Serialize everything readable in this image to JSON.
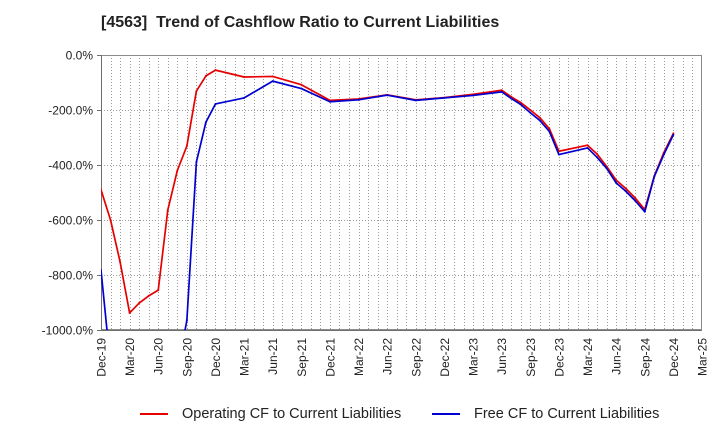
{
  "chart_data": {
    "type": "line",
    "title": "[4563]  Trend of Cashflow Ratio to Current Liabilities",
    "xlim": [
      "Dec-19",
      "Mar-25"
    ],
    "ylim": [
      -1000,
      0
    ],
    "x_tick_labels": [
      "Dec-19",
      "Mar-20",
      "Jun-20",
      "Sep-20",
      "Dec-20",
      "Mar-21",
      "Jun-21",
      "Sep-21",
      "Dec-21",
      "Mar-22",
      "Jun-22",
      "Sep-22",
      "Dec-22",
      "Mar-23",
      "Jun-23",
      "Sep-23",
      "Dec-23",
      "Mar-24",
      "Jun-24",
      "Sep-24",
      "Dec-24",
      "Mar-25"
    ],
    "y_tick_values": [
      0,
      -200,
      -400,
      -600,
      -800,
      -1000
    ],
    "y_tick_labels": [
      "0.0%",
      "-200.0%",
      "-400.0%",
      "-600.0%",
      "-800.0%",
      "-1000.0%"
    ],
    "grid": true,
    "legend": "bottom",
    "series": [
      {
        "name": "Operating CF to Current Liabilities",
        "color": "#e60000",
        "points": [
          {
            "x": "Dec-19",
            "y": -490
          },
          {
            "x": "Jan-20",
            "y": -600
          },
          {
            "x": "Feb-20",
            "y": -752
          },
          {
            "x": "Mar-20",
            "y": -938
          },
          {
            "x": "Apr-20",
            "y": -902
          },
          {
            "x": "May-20",
            "y": -876
          },
          {
            "x": "Jun-20",
            "y": -855
          },
          {
            "x": "Jul-20",
            "y": -564
          },
          {
            "x": "Aug-20",
            "y": -420
          },
          {
            "x": "Sep-20",
            "y": -331
          },
          {
            "x": "Oct-20",
            "y": -131
          },
          {
            "x": "Nov-20",
            "y": -76
          },
          {
            "x": "Dec-20",
            "y": -55
          },
          {
            "x": "Mar-21",
            "y": -80
          },
          {
            "x": "Jun-21",
            "y": -78
          },
          {
            "x": "Sep-21",
            "y": -108
          },
          {
            "x": "Dec-21",
            "y": -165
          },
          {
            "x": "Mar-22",
            "y": -160
          },
          {
            "x": "Jun-22",
            "y": -145
          },
          {
            "x": "Sep-22",
            "y": -163
          },
          {
            "x": "Dec-22",
            "y": -155
          },
          {
            "x": "Mar-23",
            "y": -143
          },
          {
            "x": "Jun-23",
            "y": -128
          },
          {
            "x": "Jul-23",
            "y": -152
          },
          {
            "x": "Aug-23",
            "y": -173
          },
          {
            "x": "Sep-23",
            "y": -200
          },
          {
            "x": "Oct-23",
            "y": -228
          },
          {
            "x": "Nov-23",
            "y": -268
          },
          {
            "x": "Dec-23",
            "y": -350
          },
          {
            "x": "Mar-24",
            "y": -328
          },
          {
            "x": "Apr-24",
            "y": -360
          },
          {
            "x": "May-24",
            "y": -405
          },
          {
            "x": "Jun-24",
            "y": -455
          },
          {
            "x": "Jul-24",
            "y": -485
          },
          {
            "x": "Aug-24",
            "y": -520
          },
          {
            "x": "Sep-24",
            "y": -562
          },
          {
            "x": "Oct-24",
            "y": -440
          },
          {
            "x": "Nov-24",
            "y": -355
          },
          {
            "x": "Dec-24",
            "y": -285
          }
        ]
      },
      {
        "name": "Free CF to Current Liabilities",
        "color": "#0000d0",
        "points": [
          {
            "x": "Dec-19",
            "y": -782
          },
          {
            "x": "Jan-20",
            "y": -1130
          },
          {
            "x": "Aug-20",
            "y": -1150
          },
          {
            "x": "Sep-20",
            "y": -965
          },
          {
            "x": "Oct-20",
            "y": -389
          },
          {
            "x": "Nov-20",
            "y": -244
          },
          {
            "x": "Dec-20",
            "y": -178
          },
          {
            "x": "Mar-21",
            "y": -156
          },
          {
            "x": "Jun-21",
            "y": -95
          },
          {
            "x": "Sep-21",
            "y": -122
          },
          {
            "x": "Dec-21",
            "y": -170
          },
          {
            "x": "Mar-22",
            "y": -163
          },
          {
            "x": "Jun-22",
            "y": -146
          },
          {
            "x": "Sep-22",
            "y": -165
          },
          {
            "x": "Dec-22",
            "y": -156
          },
          {
            "x": "Mar-23",
            "y": -147
          },
          {
            "x": "Jun-23",
            "y": -134
          },
          {
            "x": "Jul-23",
            "y": -158
          },
          {
            "x": "Aug-23",
            "y": -180
          },
          {
            "x": "Sep-23",
            "y": -210
          },
          {
            "x": "Oct-23",
            "y": -238
          },
          {
            "x": "Nov-23",
            "y": -278
          },
          {
            "x": "Dec-23",
            "y": -362
          },
          {
            "x": "Mar-24",
            "y": -338
          },
          {
            "x": "Apr-24",
            "y": -372
          },
          {
            "x": "May-24",
            "y": -412
          },
          {
            "x": "Jun-24",
            "y": -465
          },
          {
            "x": "Jul-24",
            "y": -495
          },
          {
            "x": "Aug-24",
            "y": -530
          },
          {
            "x": "Sep-24",
            "y": -570
          },
          {
            "x": "Oct-24",
            "y": -442
          },
          {
            "x": "Nov-24",
            "y": -362
          },
          {
            "x": "Dec-24",
            "y": -290
          }
        ]
      }
    ]
  }
}
